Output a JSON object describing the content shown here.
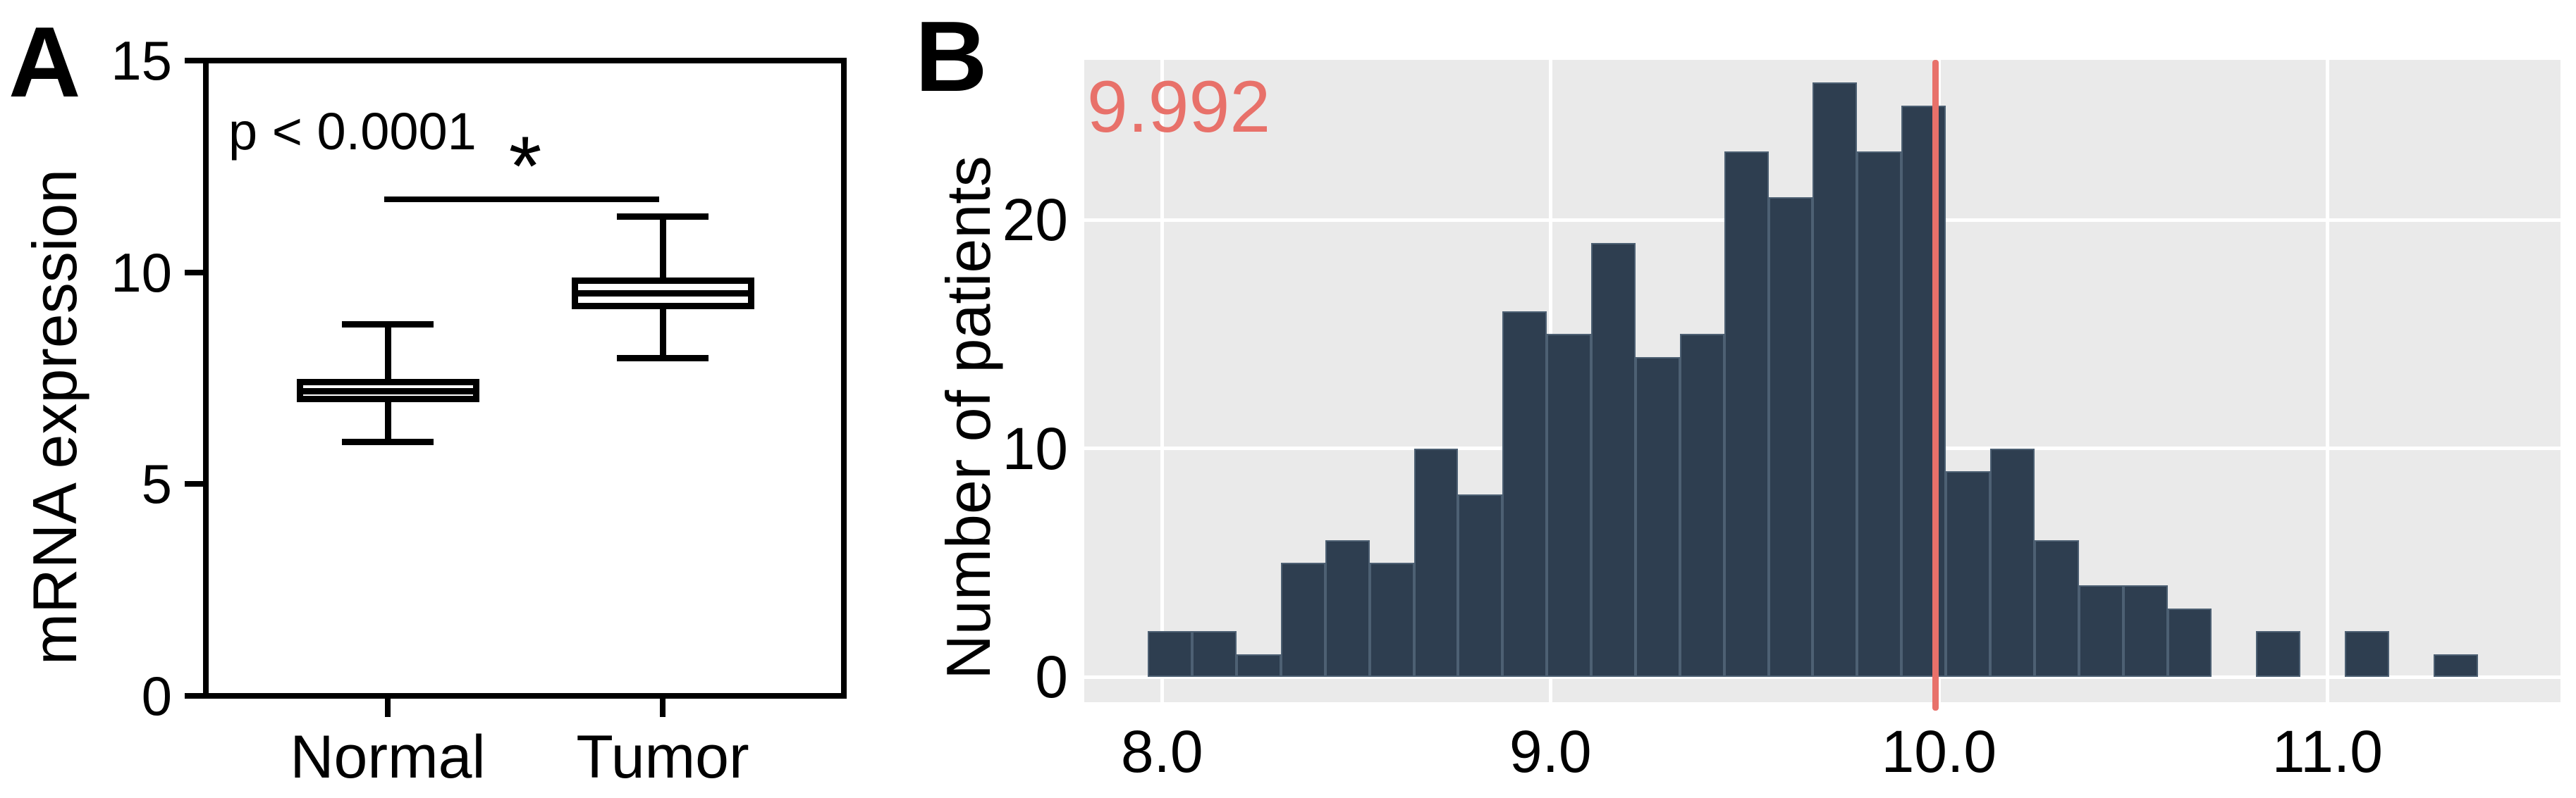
{
  "figure": {
    "background": "#ffffff",
    "panel_a_letter": "A",
    "panel_b_letter": "B"
  },
  "chart_data": [
    {
      "panel_label": "A",
      "type": "boxplot",
      "title": "",
      "ylabel": "mRNA expression",
      "ylim": [
        0,
        15
      ],
      "yticks": [
        0,
        5,
        10,
        15
      ],
      "ytick_labels": [
        "0",
        "5",
        "10",
        "15"
      ],
      "categories": [
        "Normal",
        "Tumor"
      ],
      "grid": false,
      "annotations": {
        "p_text": "p < 0.0001",
        "sig_marker": "*",
        "sig_bar_y": 11.72
      },
      "boxes": [
        {
          "category": "Normal",
          "whisker_low": 6.0,
          "q1": 6.93,
          "median": 7.2,
          "q3": 7.48,
          "whisker_high": 8.78
        },
        {
          "category": "Tumor",
          "whisker_low": 7.98,
          "q1": 9.13,
          "median": 9.5,
          "q3": 9.88,
          "whisker_high": 11.31
        }
      ],
      "colors": {
        "line": "#000000",
        "box_fill": "#ffffff"
      }
    },
    {
      "panel_label": "B",
      "type": "histogram",
      "title": "",
      "xlabel": "",
      "ylabel": "Number of patients",
      "xlim": [
        7.8,
        11.6
      ],
      "ylim": [
        -1.1,
        27.0
      ],
      "xticks": [
        8.0,
        9.0,
        10.0,
        11.0
      ],
      "xtick_labels": [
        "8.0",
        "9.0",
        "10.0",
        "11.0"
      ],
      "yticks": [
        0,
        10,
        20
      ],
      "ytick_labels": [
        "0",
        "10",
        "20"
      ],
      "grid": true,
      "legend": false,
      "bin_start": 7.964,
      "bin_width": 0.1141,
      "counts": [
        2,
        2,
        1,
        5,
        6,
        5,
        10,
        8,
        16,
        15,
        19,
        14,
        15,
        23,
        21,
        26,
        23,
        25,
        9,
        10,
        6,
        4,
        4,
        3,
        0,
        2,
        0,
        2,
        0,
        1
      ],
      "cutoff_line": {
        "x": 9.992,
        "label": "9.992"
      },
      "colors": {
        "bar": "#2e3e50",
        "bar_edge": "#51637400",
        "bar_edge_visible": "#516374",
        "plot_bg": "#eaeaea",
        "grid": "#ffffff",
        "cutoff": "#e8716a"
      }
    }
  ]
}
